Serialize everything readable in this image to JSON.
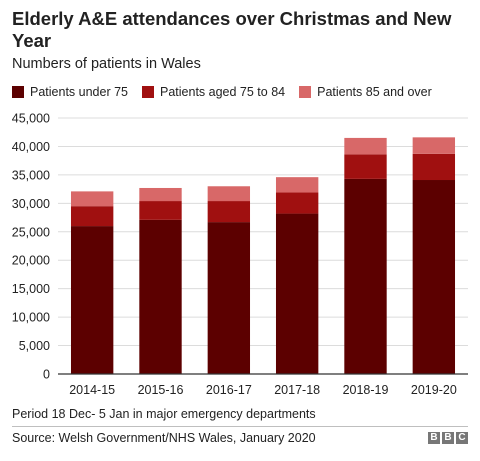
{
  "chart_data": {
    "type": "bar",
    "stacked": true,
    "title": "Elderly A&E attendances over Christmas and New Year",
    "subtitle": "Numbers of patients in Wales",
    "categories": [
      "2014-15",
      "2015-16",
      "2016-17",
      "2017-18",
      "2018-19",
      "2019-20"
    ],
    "series": [
      {
        "name": "Patients under 75",
        "color": "#5c0000",
        "values": [
          26000,
          27100,
          26700,
          28200,
          34300,
          34100
        ]
      },
      {
        "name": "Patients aged 75 to 84",
        "color": "#a01010",
        "values": [
          3500,
          3300,
          3700,
          3700,
          4300,
          4600
        ]
      },
      {
        "name": "Patients 85 and over",
        "color": "#d86868",
        "values": [
          2600,
          2300,
          2600,
          2700,
          2900,
          2900
        ]
      }
    ],
    "ylim": [
      0,
      45000
    ],
    "yticks": [
      0,
      5000,
      10000,
      15000,
      20000,
      25000,
      30000,
      35000,
      40000,
      45000
    ],
    "ytick_labels": [
      "0",
      "5,000",
      "10,000",
      "15,000",
      "20,000",
      "25,000",
      "30,000",
      "35,000",
      "40,000",
      "45,000"
    ],
    "grid": true,
    "legend_position": "top"
  },
  "footer": {
    "note": "Period 18 Dec- 5 Jan in major emergency departments",
    "source": "Source: Welsh Government/NHS Wales, January 2020",
    "logo_letters": [
      "B",
      "B",
      "C"
    ]
  }
}
